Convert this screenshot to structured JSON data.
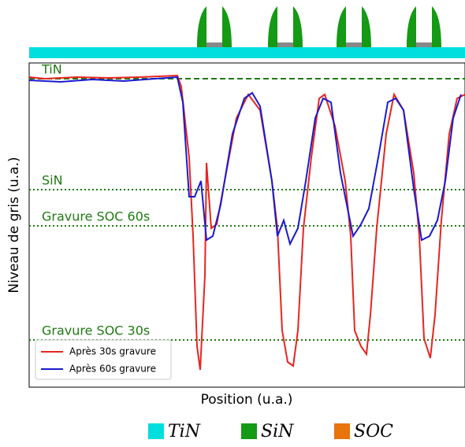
{
  "chart_data": {
    "type": "line",
    "xlabel": "Position (u.a.)",
    "ylabel": "Niveau de gris (u.a.)",
    "xlim": [
      0,
      553
    ],
    "ylim": [
      0,
      412
    ],
    "grid": false,
    "legend": "lower left",
    "series": [
      {
        "name": "Après 30s gravure",
        "color": "#e8251f",
        "x": [
          0,
          20,
          60,
          100,
          140,
          188,
          193,
          203,
          208,
          213,
          217,
          223,
          225,
          231,
          238,
          248,
          263,
          278,
          293,
          308,
          315,
          321,
          328,
          335,
          341,
          348,
          358,
          368,
          375,
          388,
          401,
          408,
          413,
          421,
          428,
          433,
          441,
          453,
          463,
          475,
          488,
          495,
          501,
          509,
          515,
          523,
          533,
          543,
          553
        ],
        "y": [
          394,
          392,
          394,
          393,
          394,
          396,
          382,
          292,
          192,
          52,
          22,
          142,
          285,
          202,
          207,
          262,
          342,
          372,
          352,
          262,
          202,
          72,
          32,
          27,
          72,
          202,
          292,
          367,
          372,
          332,
          262,
          192,
          72,
          52,
          42,
          92,
          202,
          322,
          372,
          352,
          272,
          192,
          62,
          37,
          92,
          212,
          322,
          367,
          372
        ]
      },
      {
        "name": "Après 60s gravure",
        "color": "#1a1ad0",
        "x": [
          0,
          40,
          80,
          120,
          160,
          188,
          195,
          203,
          210,
          218,
          225,
          233,
          243,
          258,
          273,
          283,
          293,
          308,
          315,
          323,
          331,
          341,
          351,
          363,
          373,
          383,
          395,
          403,
          411,
          421,
          431,
          443,
          455,
          465,
          475,
          488,
          498,
          508,
          518,
          528,
          538,
          548
        ],
        "y": [
          390,
          388,
          391,
          389,
          392,
          394,
          362,
          242,
          242,
          262,
          187,
          192,
          232,
          322,
          367,
          374,
          357,
          262,
          192,
          212,
          182,
          202,
          262,
          342,
          367,
          362,
          272,
          232,
          192,
          207,
          227,
          292,
          362,
          367,
          352,
          252,
          187,
          192,
          212,
          262,
          342,
          372
        ]
      }
    ],
    "reference_lines": [
      {
        "label": "TiN",
        "value": 392,
        "style": "dashed",
        "color": "#1f7a12"
      },
      {
        "label": "SiN",
        "value": 251,
        "style": "dotted",
        "color": "#1f7a12"
      },
      {
        "label": "Gravure SOC 60s",
        "value": 205,
        "style": "dotted",
        "color": "#1f7a12"
      },
      {
        "label": "Gravure SOC 30s",
        "value": 60,
        "style": "dotted",
        "color": "#1f7a12"
      }
    ],
    "material_legend": [
      {
        "label": "TiN",
        "color": "#00dede"
      },
      {
        "label": "SiN",
        "color": "#149a14"
      },
      {
        "label": "SOC",
        "color": "#e8740c"
      }
    ]
  }
}
